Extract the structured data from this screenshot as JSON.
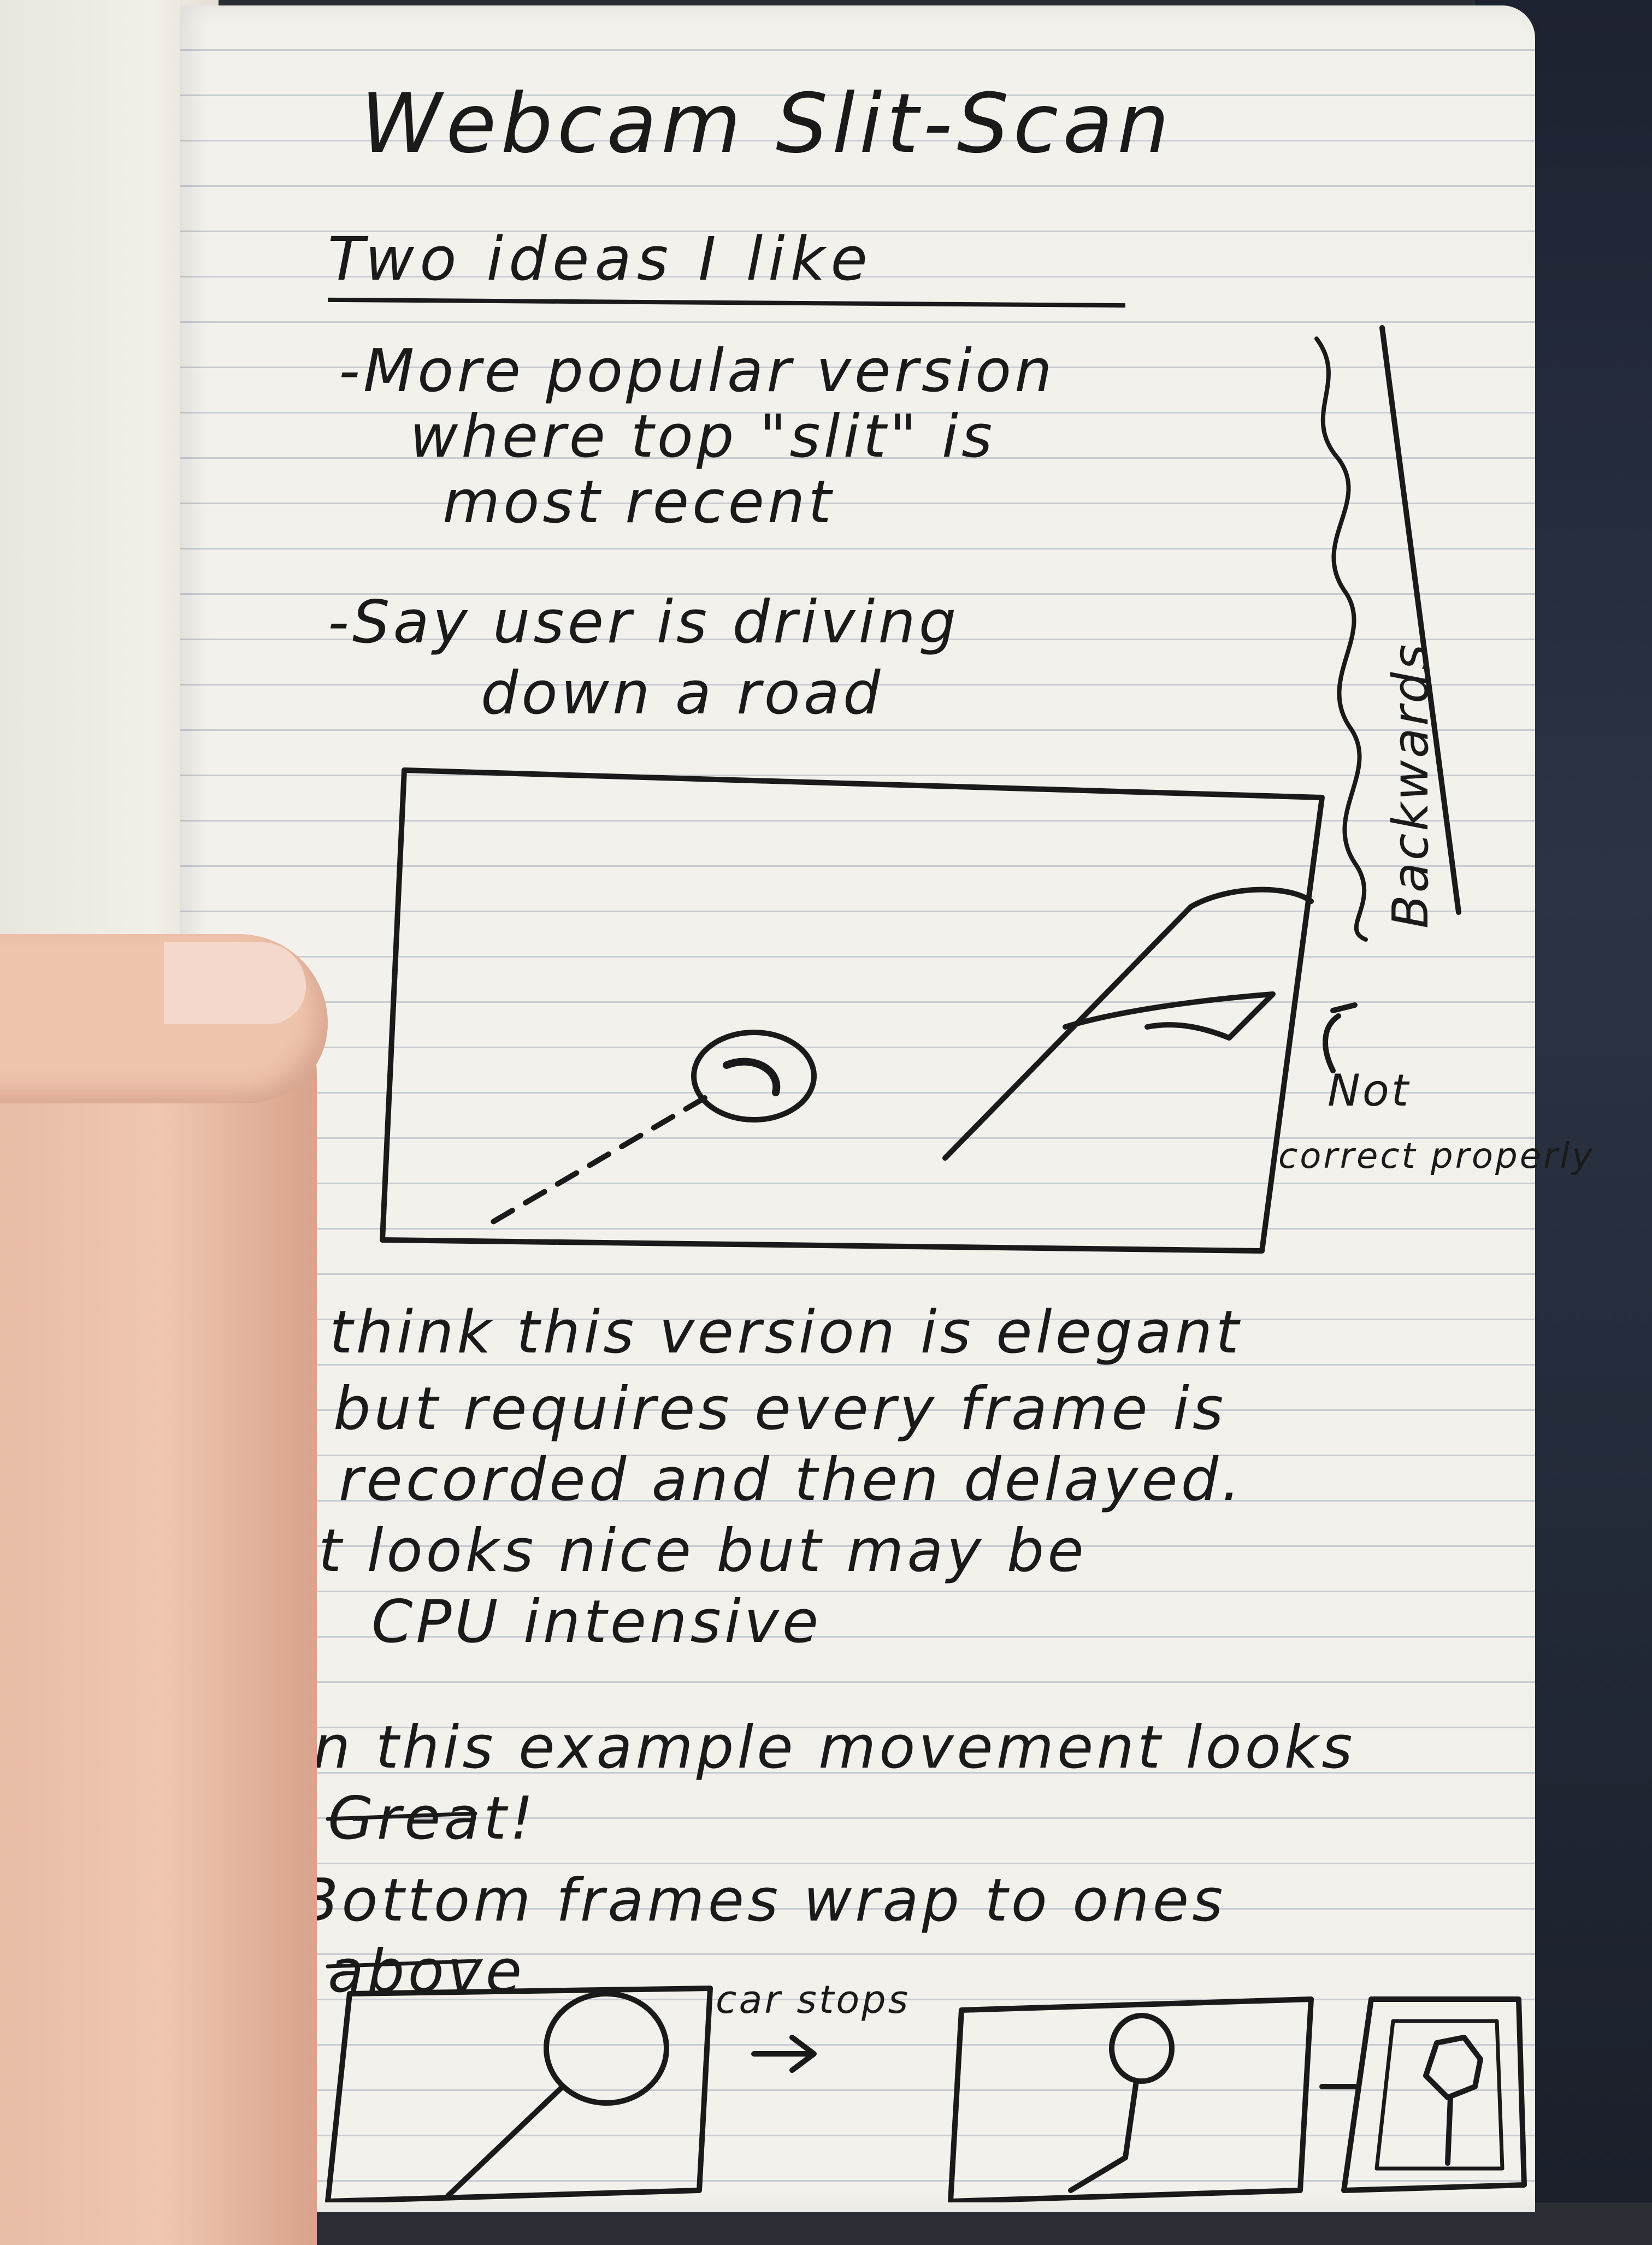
{
  "notes": {
    "title": "Webcam Slit-Scan",
    "subtitle": "Two ideas I like",
    "idea1": [
      "-More popular version",
      "where top \"slit\" is",
      "most recent"
    ],
    "idea2": [
      "-Say user is driving",
      "down a road"
    ],
    "side_scribble": "Backwards",
    "annotation": [
      "Not",
      "correct properly"
    ],
    "bullets": [
      "-I think this version is elegant",
      "but requires every frame is",
      "recorded and then delayed.",
      "-It looks nice but may be",
      "CPU intensive",
      "-In this example movement looks",
      "Great!",
      "- Bottom frames wrap to ones",
      "above"
    ],
    "arrow_label": "car stops"
  },
  "colors": {
    "ink": "#1a1a1a",
    "paper": "#f3f1ec",
    "rule_lines": "#c9ccd3"
  }
}
